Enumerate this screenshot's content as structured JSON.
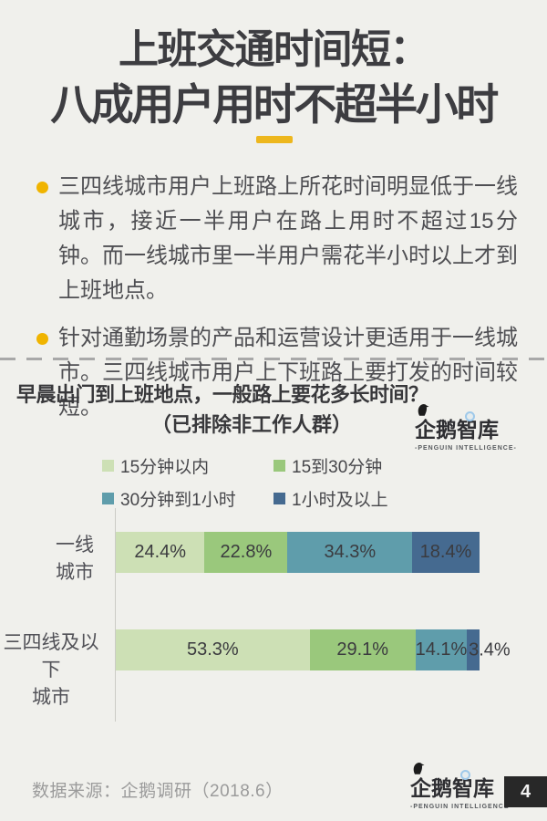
{
  "page": {
    "background": "#f0f0ec",
    "accent_color": "#edb71d"
  },
  "header": {
    "title_line1": "上班交通时间短：",
    "title_line2": "八成用户用时不超半小时"
  },
  "bullets": [
    {
      "text": "三四线城市用户上班路上所花时间明显低于一线城市，接近一半用户在路上用时不超过15分钟。而一线城市里一半用户需花半小时以上才到上班地点。"
    },
    {
      "text": "针对通勤场景的产品和运营设计更适用于一线城市。三四线城市用户上下班路上要打发的时间较短。"
    }
  ],
  "chart": {
    "question_line1": "早晨出门到上班地点，一般路上要花多长时间？",
    "question_line2": "（已排除非工作人群）"
  },
  "chart_data": {
    "type": "bar",
    "orientation": "horizontal",
    "stacked": true,
    "title": "早晨出门到上班地点，一般路上要花多长时间？（已排除非工作人群）",
    "categories": [
      {
        "name": "一线城市",
        "lines": [
          "一线",
          "城市"
        ]
      },
      {
        "name": "三四线及以下城市",
        "lines": [
          "三四线及以下",
          "城市"
        ]
      }
    ],
    "series": [
      {
        "name": "15分钟以内",
        "color": "#cde0b5",
        "values": [
          24.4,
          53.3
        ]
      },
      {
        "name": "15到30分钟",
        "color": "#9ac87c",
        "values": [
          22.8,
          29.1
        ]
      },
      {
        "name": "30分钟到1小时",
        "color": "#5f9dab",
        "values": [
          34.3,
          14.1
        ]
      },
      {
        "name": "1小时及以上",
        "color": "#456a90",
        "values": [
          18.4,
          3.4
        ]
      }
    ],
    "value_suffix": "%",
    "xlim": [
      0,
      100
    ],
    "legend_position": "top",
    "grid": false
  },
  "logo": {
    "name": "企鹅智库",
    "subtitle": "-PENGUIN INTELLIGENCE-"
  },
  "footer": {
    "source": "数据来源：企鹅调研（2018.6）",
    "page_number": "4"
  }
}
